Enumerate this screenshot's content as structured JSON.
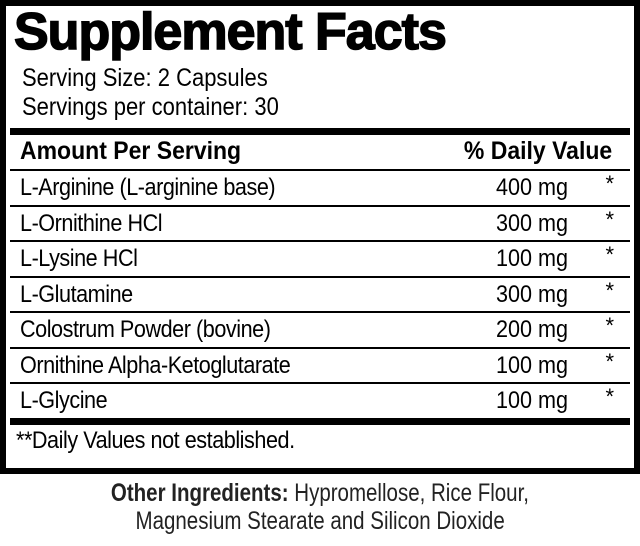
{
  "title": "Supplement Facts",
  "serving_size": "Serving Size: 2 Capsules",
  "servings_per_container": "Servings per container: 30",
  "header": {
    "amount": "Amount Per Serving",
    "daily_value": "% Daily Value"
  },
  "rows": [
    {
      "name": "L-Arginine (L-arginine base)",
      "amount": "400 mg",
      "dv": "*"
    },
    {
      "name": "L-Ornithine HCl",
      "amount": "300 mg",
      "dv": "*"
    },
    {
      "name": "L-Lysine HCl",
      "amount": "100 mg",
      "dv": "*"
    },
    {
      "name": "L-Glutamine",
      "amount": "300 mg",
      "dv": "*"
    },
    {
      "name": "Colostrum Powder (bovine)",
      "amount": "200 mg",
      "dv": "*"
    },
    {
      "name": "Ornithine Alpha-Ketoglutarate",
      "amount": "100 mg",
      "dv": "*"
    },
    {
      "name": "L-Glycine",
      "amount": "100 mg",
      "dv": "*"
    }
  ],
  "footnote": "**Daily Values not established.",
  "other_ingredients": {
    "label": "Other Ingredients:",
    "line1": "Hypromellose, Rice Flour,",
    "line2": "Magnesium Stearate and Silicon Dioxide"
  }
}
